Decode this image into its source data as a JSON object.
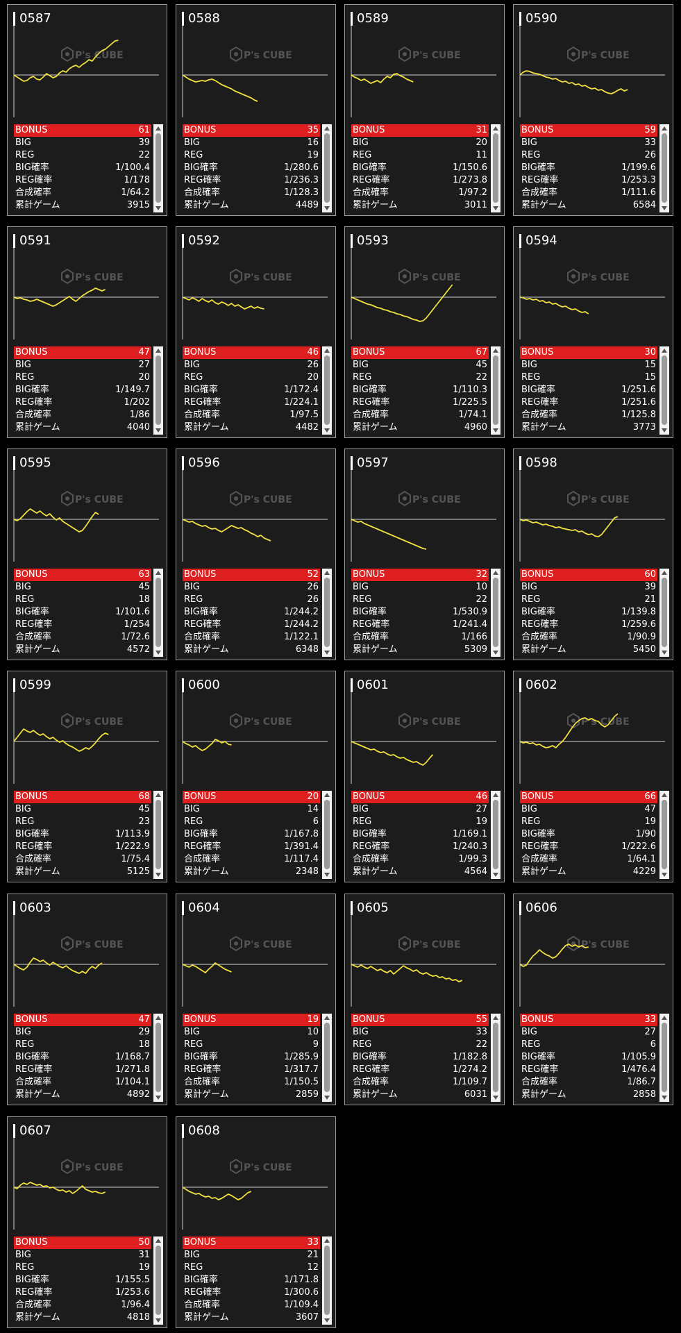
{
  "watermark": {
    "logo_text": "P's CUBE",
    "line_color": "#f0e040",
    "bonus_color": "#dd1f1f"
  },
  "labels": {
    "bonus": "BONUS",
    "big": "BIG",
    "reg": "REG",
    "big_rate": "BIG確率",
    "reg_rate": "REG確率",
    "combined_rate": "合成確率",
    "total_games": "累計ゲーム"
  },
  "machines": [
    {
      "id": "0587",
      "bonus": "61",
      "big": "39",
      "reg": "22",
      "big_rate": "1/100.4",
      "reg_rate": "1/178",
      "combined_rate": "1/64.2",
      "total_games": "3915",
      "chart_data": {
        "type": "line",
        "y": [
          0,
          -3,
          -6,
          -9,
          -8,
          -4,
          -2,
          -6,
          -7,
          -3,
          2,
          -1,
          -4,
          -2,
          3,
          6,
          4,
          9,
          12,
          14,
          11,
          15,
          18,
          22,
          20,
          26,
          31,
          35,
          37,
          41,
          45,
          49,
          50
        ]
      }
    },
    {
      "id": "0588",
      "bonus": "35",
      "big": "16",
      "reg": "19",
      "big_rate": "1/280.6",
      "reg_rate": "1/236.3",
      "combined_rate": "1/128.3",
      "total_games": "4489",
      "chart_data": {
        "type": "line",
        "y": [
          0,
          -3,
          -6,
          -8,
          -10,
          -9,
          -8,
          -9,
          -7,
          -6,
          -8,
          -11,
          -14,
          -16,
          -18,
          -20,
          -23,
          -25,
          -27,
          -29,
          -31,
          -33,
          -36,
          -38
        ]
      }
    },
    {
      "id": "0589",
      "bonus": "31",
      "big": "20",
      "reg": "11",
      "big_rate": "1/150.6",
      "reg_rate": "1/273.8",
      "combined_rate": "1/97.2",
      "total_games": "3011",
      "chart_data": {
        "type": "line",
        "y": [
          0,
          -3,
          -5,
          -8,
          -6,
          -9,
          -12,
          -10,
          -8,
          -11,
          -6,
          -2,
          -4,
          1,
          2,
          -1,
          -3,
          -6,
          -8,
          -10
        ]
      }
    },
    {
      "id": "0590",
      "bonus": "59",
      "big": "33",
      "reg": "26",
      "big_rate": "1/199.6",
      "reg_rate": "1/253.3",
      "combined_rate": "1/111.6",
      "total_games": "6584",
      "chart_data": {
        "type": "line",
        "y": [
          0,
          4,
          6,
          5,
          3,
          2,
          1,
          -1,
          -3,
          -4,
          -6,
          -5,
          -8,
          -10,
          -9,
          -12,
          -11,
          -14,
          -13,
          -16,
          -15,
          -18,
          -20,
          -19,
          -22,
          -21,
          -24,
          -26,
          -27,
          -25,
          -22,
          -20,
          -23,
          -21
        ]
      }
    },
    {
      "id": "0591",
      "bonus": "47",
      "big": "27",
      "reg": "20",
      "big_rate": "1/149.7",
      "reg_rate": "1/202",
      "combined_rate": "1/86",
      "total_games": "4040",
      "chart_data": {
        "type": "line",
        "y": [
          0,
          -2,
          -1,
          -3,
          -4,
          -6,
          -5,
          -3,
          -5,
          -7,
          -9,
          -11,
          -13,
          -11,
          -8,
          -5,
          -2,
          1,
          -3,
          -6,
          -2,
          2,
          5,
          8,
          10,
          13,
          11,
          9,
          11
        ]
      }
    },
    {
      "id": "0592",
      "bonus": "46",
      "big": "26",
      "reg": "20",
      "big_rate": "1/172.4",
      "reg_rate": "1/224.1",
      "combined_rate": "1/97.5",
      "total_games": "4482",
      "chart_data": {
        "type": "line",
        "y": [
          0,
          -2,
          -4,
          -1,
          -3,
          -6,
          -2,
          -5,
          -7,
          -4,
          -8,
          -10,
          -7,
          -9,
          -12,
          -9,
          -13,
          -11,
          -14,
          -17,
          -15,
          -13,
          -16,
          -14,
          -16,
          -17
        ]
      }
    },
    {
      "id": "0593",
      "bonus": "67",
      "big": "45",
      "reg": "22",
      "big_rate": "1/110.3",
      "reg_rate": "1/225.5",
      "combined_rate": "1/74.1",
      "total_games": "4960",
      "chart_data": {
        "type": "line",
        "y": [
          0,
          -2,
          -4,
          -6,
          -8,
          -10,
          -11,
          -13,
          -15,
          -16,
          -18,
          -19,
          -21,
          -22,
          -24,
          -25,
          -27,
          -28,
          -30,
          -32,
          -33,
          -35,
          -34,
          -30,
          -24,
          -18,
          -12,
          -6,
          0,
          6,
          12,
          18
        ]
      }
    },
    {
      "id": "0594",
      "bonus": "30",
      "big": "15",
      "reg": "15",
      "big_rate": "1/251.6",
      "reg_rate": "1/251.6",
      "combined_rate": "1/125.8",
      "total_games": "3773",
      "chart_data": {
        "type": "line",
        "y": [
          0,
          -1,
          -3,
          -2,
          -4,
          -3,
          -6,
          -5,
          -8,
          -7,
          -10,
          -9,
          -12,
          -14,
          -13,
          -16,
          -18,
          -17,
          -20,
          -22,
          -21,
          -24
        ]
      }
    },
    {
      "id": "0595",
      "bonus": "63",
      "big": "45",
      "reg": "18",
      "big_rate": "1/101.6",
      "reg_rate": "1/254",
      "combined_rate": "1/72.6",
      "total_games": "4572",
      "chart_data": {
        "type": "line",
        "y": [
          0,
          -2,
          1,
          6,
          11,
          15,
          12,
          9,
          12,
          8,
          5,
          8,
          3,
          -1,
          2,
          -3,
          -6,
          -9,
          -12,
          -15,
          -18,
          -16,
          -10,
          -3,
          4,
          10,
          7
        ]
      }
    },
    {
      "id": "0596",
      "bonus": "52",
      "big": "26",
      "reg": "26",
      "big_rate": "1/244.2",
      "reg_rate": "1/244.2",
      "combined_rate": "1/122.1",
      "total_games": "6348",
      "chart_data": {
        "type": "line",
        "y": [
          0,
          -2,
          -4,
          -3,
          -6,
          -8,
          -10,
          -9,
          -12,
          -14,
          -13,
          -16,
          -18,
          -15,
          -12,
          -9,
          -11,
          -13,
          -12,
          -15,
          -17,
          -20,
          -22,
          -25,
          -23,
          -27,
          -29,
          -31
        ]
      }
    },
    {
      "id": "0597",
      "bonus": "32",
      "big": "10",
      "reg": "22",
      "big_rate": "1/530.9",
      "reg_rate": "1/241.4",
      "combined_rate": "1/166",
      "total_games": "5309",
      "chart_data": {
        "type": "line",
        "y": [
          0,
          -2,
          -4,
          -3,
          -6,
          -8,
          -10,
          -12,
          -14,
          -16,
          -18,
          -20,
          -22,
          -24,
          -26,
          -28,
          -30,
          -32,
          -34,
          -36,
          -38,
          -40,
          -42,
          -43
        ]
      }
    },
    {
      "id": "0598",
      "bonus": "60",
      "big": "39",
      "reg": "21",
      "big_rate": "1/139.8",
      "reg_rate": "1/259.6",
      "combined_rate": "1/90.9",
      "total_games": "5450",
      "chart_data": {
        "type": "line",
        "y": [
          0,
          -2,
          -1,
          -3,
          -5,
          -4,
          -6,
          -8,
          -7,
          -9,
          -10,
          -12,
          -11,
          -13,
          -14,
          -15,
          -16,
          -15,
          -18,
          -17,
          -20,
          -22,
          -21,
          -24,
          -25,
          -22,
          -16,
          -10,
          -4,
          2,
          4
        ]
      }
    },
    {
      "id": "0599",
      "bonus": "68",
      "big": "45",
      "reg": "23",
      "big_rate": "1/113.9",
      "reg_rate": "1/222.9",
      "combined_rate": "1/75.4",
      "total_games": "5125",
      "chart_data": {
        "type": "line",
        "y": [
          0,
          6,
          12,
          18,
          15,
          13,
          16,
          12,
          9,
          11,
          7,
          4,
          6,
          2,
          -1,
          1,
          -3,
          -6,
          -8,
          -11,
          -14,
          -12,
          -9,
          -11,
          -7,
          -2,
          4,
          9,
          12,
          10
        ]
      }
    },
    {
      "id": "0600",
      "bonus": "20",
      "big": "14",
      "reg": "6",
      "big_rate": "1/167.8",
      "reg_rate": "1/391.4",
      "combined_rate": "1/117.4",
      "total_games": "2348",
      "chart_data": {
        "type": "line",
        "y": [
          0,
          -3,
          -5,
          -8,
          -6,
          -10,
          -13,
          -11,
          -7,
          -3,
          3,
          1,
          -2,
          0,
          -4,
          -5
        ]
      }
    },
    {
      "id": "0601",
      "bonus": "46",
      "big": "27",
      "reg": "19",
      "big_rate": "1/169.1",
      "reg_rate": "1/240.3",
      "combined_rate": "1/99.3",
      "total_games": "4564",
      "chart_data": {
        "type": "line",
        "y": [
          0,
          -2,
          -4,
          -6,
          -8,
          -10,
          -12,
          -11,
          -14,
          -16,
          -15,
          -18,
          -20,
          -19,
          -22,
          -24,
          -23,
          -26,
          -28,
          -30,
          -29,
          -32,
          -34,
          -30,
          -24,
          -19
        ]
      }
    },
    {
      "id": "0602",
      "bonus": "66",
      "big": "47",
      "reg": "19",
      "big_rate": "1/90",
      "reg_rate": "1/222.6",
      "combined_rate": "1/64.1",
      "total_games": "4229",
      "chart_data": {
        "type": "line",
        "y": [
          0,
          -2,
          -1,
          -3,
          -2,
          -5,
          -4,
          -7,
          -9,
          -8,
          -6,
          -9,
          -4,
          0,
          6,
          13,
          20,
          26,
          30,
          33,
          34,
          31,
          33,
          30,
          29,
          24,
          21,
          24,
          30,
          36,
          40
        ]
      }
    },
    {
      "id": "0603",
      "bonus": "47",
      "big": "29",
      "reg": "18",
      "big_rate": "1/168.7",
      "reg_rate": "1/271.8",
      "combined_rate": "1/104.1",
      "total_games": "4892",
      "chart_data": {
        "type": "line",
        "y": [
          0,
          -3,
          -6,
          -8,
          -4,
          3,
          9,
          7,
          4,
          6,
          2,
          -1,
          3,
          0,
          -3,
          -5,
          -2,
          -6,
          -9,
          -11,
          -13,
          -10,
          -13,
          -7,
          -3,
          -6,
          -1,
          2
        ]
      }
    },
    {
      "id": "0604",
      "bonus": "19",
      "big": "10",
      "reg": "9",
      "big_rate": "1/285.9",
      "reg_rate": "1/317.7",
      "combined_rate": "1/150.5",
      "total_games": "2859",
      "chart_data": {
        "type": "line",
        "y": [
          0,
          -2,
          -4,
          -1,
          -3,
          -6,
          -9,
          -12,
          -7,
          -3,
          2,
          -1,
          -4,
          -7,
          -9,
          -11
        ]
      }
    },
    {
      "id": "0605",
      "bonus": "55",
      "big": "33",
      "reg": "22",
      "big_rate": "1/182.8",
      "reg_rate": "1/274.2",
      "combined_rate": "1/109.7",
      "total_games": "6031",
      "chart_data": {
        "type": "line",
        "y": [
          0,
          -2,
          -4,
          -1,
          -4,
          -6,
          -3,
          -6,
          -9,
          -7,
          -10,
          -12,
          -9,
          -14,
          -10,
          -6,
          -2,
          -5,
          -7,
          -10,
          -8,
          -12,
          -14,
          -12,
          -15,
          -17,
          -16,
          -19,
          -18,
          -21,
          -20,
          -23,
          -22,
          -25,
          -23
        ]
      }
    },
    {
      "id": "0606",
      "bonus": "33",
      "big": "27",
      "reg": "6",
      "big_rate": "1/105.9",
      "reg_rate": "1/476.4",
      "combined_rate": "1/86.7",
      "total_games": "2858",
      "chart_data": {
        "type": "line",
        "y": [
          0,
          -3,
          -1,
          6,
          12,
          16,
          21,
          17,
          14,
          12,
          9,
          11,
          16,
          22,
          27,
          29,
          26,
          28,
          25,
          27,
          24,
          25
        ]
      }
    },
    {
      "id": "0607",
      "bonus": "50",
      "big": "31",
      "reg": "19",
      "big_rate": "1/155.5",
      "reg_rate": "1/253.6",
      "combined_rate": "1/96.4",
      "total_games": "4818",
      "chart_data": {
        "type": "line",
        "y": [
          0,
          -2,
          3,
          6,
          4,
          7,
          5,
          3,
          4,
          1,
          2,
          -1,
          0,
          -3,
          -5,
          -4,
          -7,
          -5,
          -9,
          -6,
          -2,
          2,
          -3,
          -5,
          -7,
          -6,
          -8,
          -9,
          -7
        ]
      }
    },
    {
      "id": "0608",
      "bonus": "33",
      "big": "21",
      "reg": "12",
      "big_rate": "1/171.8",
      "reg_rate": "1/300.6",
      "combined_rate": "1/109.4",
      "total_games": "3607",
      "chart_data": {
        "type": "line",
        "y": [
          0,
          -3,
          -6,
          -8,
          -10,
          -9,
          -12,
          -14,
          -13,
          -16,
          -15,
          -18,
          -16,
          -13,
          -10,
          -12,
          -15,
          -18,
          -16,
          -12,
          -8,
          -6
        ]
      }
    }
  ]
}
